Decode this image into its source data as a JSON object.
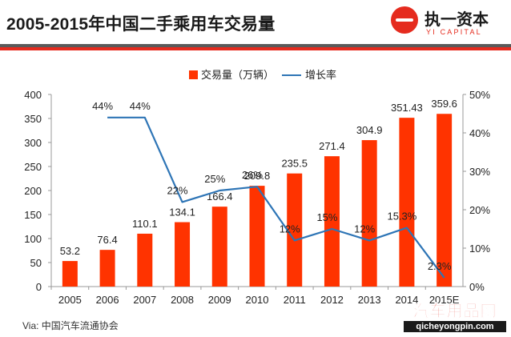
{
  "header": {
    "title": "2005-2015年中国二手乘用车交易量",
    "logo_name": "执一资本",
    "logo_sub": "YI CAPITAL"
  },
  "source_note": "Via: 中国汽车流通协会",
  "watermark": {
    "name": "汽车用品网",
    "url": "qicheyongpin.com"
  },
  "colors": {
    "bar": "#ff3300",
    "line": "#2e75b6",
    "accent": "#e52b1e"
  },
  "chart_data": {
    "type": "bar",
    "categories": [
      "2005",
      "2006",
      "2007",
      "2008",
      "2009",
      "2010",
      "2011",
      "2012",
      "2013",
      "2014",
      "2015E"
    ],
    "series": [
      {
        "name": "交易量（万辆）",
        "type": "bar",
        "axis": "left",
        "values": [
          53.2,
          76.4,
          110.1,
          134.1,
          166.4,
          209.8,
          235.5,
          271.4,
          304.9,
          351.43,
          359.6
        ],
        "labels": [
          "53.2",
          "76.4",
          "110.1",
          "134.1",
          "166.4",
          "209.8",
          "235.5",
          "271.4",
          "304.9",
          "351.43",
          "359.6"
        ]
      },
      {
        "name": "增长率",
        "type": "line",
        "axis": "right",
        "values": [
          null,
          44,
          44,
          22,
          25,
          26,
          12,
          15,
          12,
          15.3,
          2.3
        ],
        "labels": [
          "",
          "44%",
          "44%",
          "22%",
          "25%",
          "26%",
          "12%",
          "15%",
          "12%",
          "15.3%",
          "2.3%"
        ]
      }
    ],
    "y_left": {
      "min": 0,
      "max": 400,
      "ticks": [
        "0",
        "50",
        "100",
        "150",
        "200",
        "250",
        "300",
        "350",
        "400"
      ]
    },
    "y_right": {
      "min": 0,
      "max": 50,
      "ticks": [
        "0%",
        "10%",
        "20%",
        "30%",
        "40%",
        "50%"
      ]
    },
    "legend_position": "top-center",
    "grid": false
  }
}
